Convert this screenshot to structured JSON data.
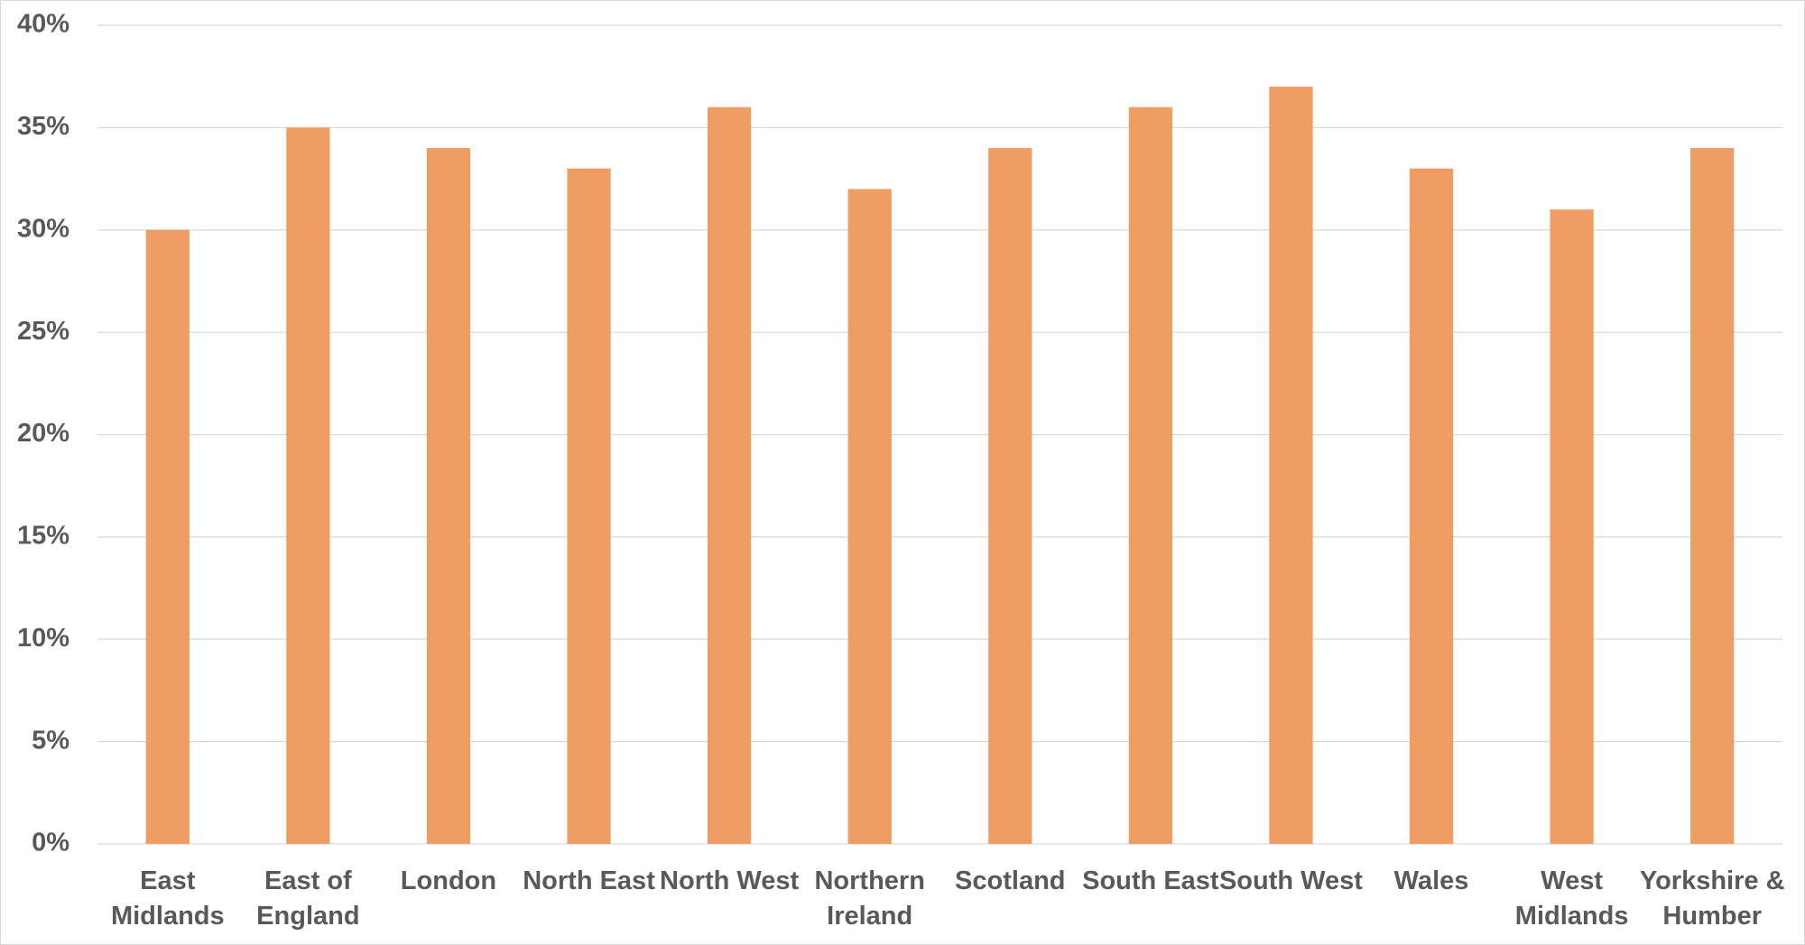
{
  "chart_data": {
    "type": "bar",
    "categories": [
      "East Midlands",
      "East of England",
      "London",
      "North East",
      "North West",
      "Northern Ireland",
      "Scotland",
      "South East",
      "South West",
      "Wales",
      "West Midlands",
      "Yorkshire & Humber"
    ],
    "values": [
      30,
      35,
      34,
      33,
      36,
      32,
      34,
      36,
      37,
      33,
      31,
      34
    ],
    "color": "#ef9d63",
    "ylim": [
      0,
      40
    ],
    "yticks": [
      {
        "value": 0,
        "label": "0%"
      },
      {
        "value": 5,
        "label": "5%"
      },
      {
        "value": 10,
        "label": "10%"
      },
      {
        "value": 15,
        "label": "15%"
      },
      {
        "value": 20,
        "label": "20%"
      },
      {
        "value": 25,
        "label": "25%"
      },
      {
        "value": 30,
        "label": "30%"
      },
      {
        "value": 35,
        "label": "35%"
      },
      {
        "value": 40,
        "label": "40%"
      }
    ],
    "grid": true
  }
}
